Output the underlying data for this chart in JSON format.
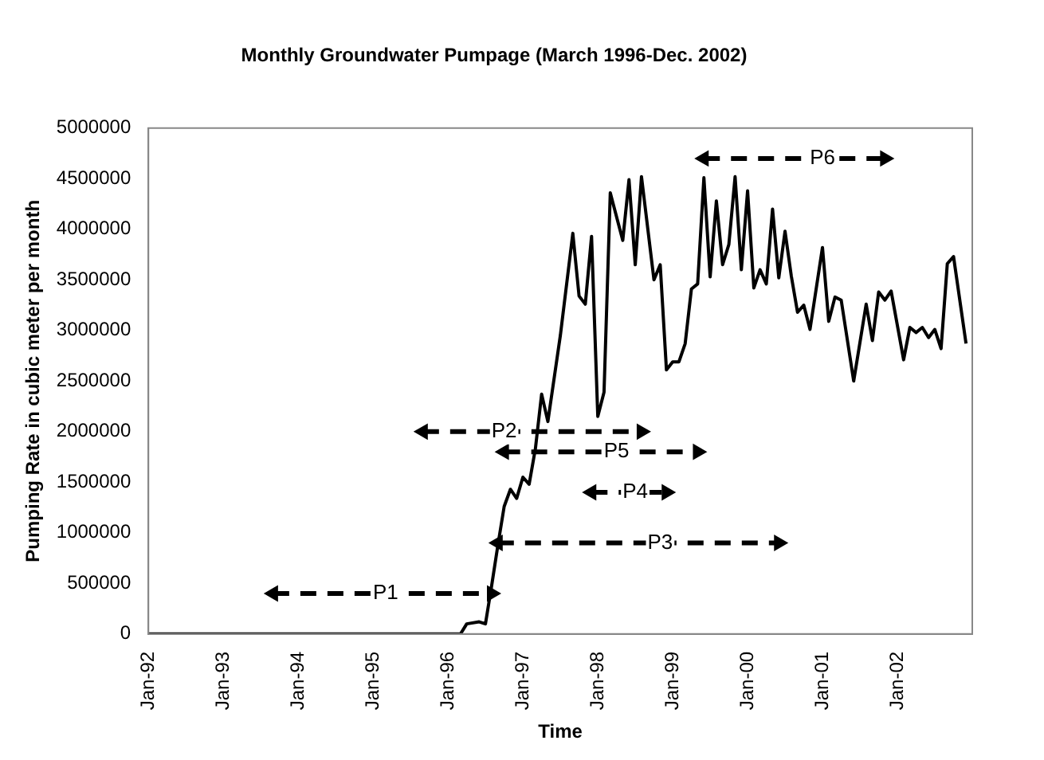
{
  "chart_data": {
    "type": "line",
    "title": "Monthly Groundwater Pumpage (March 1996-Dec. 2002)",
    "xlabel": "Time",
    "ylabel": "Pumping Rate in cubic meter per month",
    "xlim": [
      "1992-01",
      "2003-01"
    ],
    "xticks": [
      {
        "value": "1992-01",
        "label": "Jan-92"
      },
      {
        "value": "1993-01",
        "label": "Jan-93"
      },
      {
        "value": "1994-01",
        "label": "Jan-94"
      },
      {
        "value": "1995-01",
        "label": "Jan-95"
      },
      {
        "value": "1996-01",
        "label": "Jan-96"
      },
      {
        "value": "1997-01",
        "label": "Jan-97"
      },
      {
        "value": "1998-01",
        "label": "Jan-98"
      },
      {
        "value": "1999-01",
        "label": "Jan-99"
      },
      {
        "value": "2000-01",
        "label": "Jan-00"
      },
      {
        "value": "2001-01",
        "label": "Jan-01"
      },
      {
        "value": "2002-01",
        "label": "Jan-02"
      }
    ],
    "ylim": [
      0,
      5000000
    ],
    "yticks": [
      0,
      500000,
      1000000,
      1500000,
      2000000,
      2500000,
      3000000,
      3500000,
      4000000,
      4500000,
      5000000
    ],
    "grid": false,
    "legend": false,
    "marker": "none",
    "series": [
      {
        "color": "#000000",
        "x": [
          "1992-01",
          "1996-03",
          "1996-04",
          "1996-06",
          "1996-07",
          "1996-08",
          "1996-09",
          "1996-10",
          "1996-11",
          "1996-12",
          "1997-01",
          "1997-02",
          "1997-03",
          "1997-04",
          "1997-05",
          "1997-07",
          "1997-09",
          "1997-10",
          "1997-11",
          "1997-12",
          "1998-01",
          "1998-02",
          "1998-03",
          "1998-05",
          "1998-06",
          "1998-07",
          "1998-08",
          "1998-10",
          "1998-11",
          "1998-12",
          "1999-01",
          "1999-02",
          "1999-03",
          "1999-04",
          "1999-05",
          "1999-06",
          "1999-07",
          "1999-08",
          "1999-09",
          "1999-10",
          "1999-11",
          "1999-12",
          "2000-01",
          "2000-02",
          "2000-03",
          "2000-04",
          "2000-05",
          "2000-06",
          "2000-07",
          "2000-08",
          "2000-09",
          "2000-10",
          "2000-11",
          "2001-01",
          "2001-02",
          "2001-03",
          "2001-04",
          "2001-06",
          "2001-08",
          "2001-09",
          "2001-10",
          "2001-11",
          "2001-12",
          "2002-02",
          "2002-03",
          "2002-04",
          "2002-05",
          "2002-06",
          "2002-07",
          "2002-08",
          "2002-09",
          "2002-10",
          "2002-12"
        ],
        "values": [
          0,
          0,
          100000,
          120000,
          100000,
          480000,
          880000,
          1260000,
          1430000,
          1340000,
          1550000,
          1480000,
          1830000,
          2370000,
          2100000,
          2950000,
          3960000,
          3340000,
          3260000,
          3930000,
          2150000,
          2390000,
          4360000,
          3890000,
          4490000,
          3650000,
          4520000,
          3500000,
          3650000,
          2610000,
          2690000,
          2690000,
          2870000,
          3410000,
          3460000,
          4510000,
          3530000,
          4280000,
          3650000,
          3850000,
          4520000,
          3600000,
          4380000,
          3420000,
          3600000,
          3460000,
          4200000,
          3520000,
          3980000,
          3540000,
          3180000,
          3250000,
          3010000,
          3820000,
          3090000,
          3330000,
          3300000,
          2500000,
          3260000,
          2900000,
          3380000,
          3300000,
          3390000,
          2710000,
          3030000,
          2980000,
          3030000,
          2930000,
          3010000,
          2820000,
          3660000,
          3730000,
          2870000
        ]
      },
      {
        "type": "line",
        "line_style": "dashed",
        "marker": "triangle",
        "color": "#000000",
        "x": [
          "1993-09",
          "1996-08"
        ],
        "values": [
          400000,
          400000
        ]
      },
      {
        "type": "line",
        "line_style": "dashed",
        "marker": "triangle",
        "color": "#000000",
        "x": [
          "1995-09",
          "1998-08"
        ],
        "values": [
          2000000,
          2000000
        ]
      },
      {
        "type": "line",
        "line_style": "dashed",
        "marker": "triangle",
        "color": "#000000",
        "x": [
          "1996-10",
          "1999-05"
        ],
        "values": [
          1800000,
          1800000
        ]
      },
      {
        "type": "line",
        "line_style": "dashed",
        "marker": "triangle",
        "color": "#000000",
        "x": [
          "1997-12",
          "1998-12"
        ],
        "values": [
          1400000,
          1400000
        ]
      },
      {
        "type": "line",
        "line_style": "dashed",
        "marker": "triangle",
        "color": "#000000",
        "x": [
          "1996-09",
          "2000-06"
        ],
        "values": [
          900000,
          900000
        ]
      },
      {
        "type": "line",
        "line_style": "dashed",
        "marker": "triangle",
        "color": "#000000",
        "x": [
          "1999-06",
          "2001-11"
        ],
        "values": [
          4700000,
          4700000
        ]
      }
    ],
    "annotations": [
      {
        "text": "P1",
        "x": "1995-03",
        "y": 400000
      },
      {
        "text": "P2",
        "x": "1996-10",
        "y": 2000000
      },
      {
        "text": "P5",
        "x": "1998-04",
        "y": 1800000
      },
      {
        "text": "P4",
        "x": "1998-07",
        "y": 1400000
      },
      {
        "text": "P3",
        "x": "1998-11",
        "y": 900000
      },
      {
        "text": "P6",
        "x": "2001-01",
        "y": 4700000
      }
    ]
  }
}
